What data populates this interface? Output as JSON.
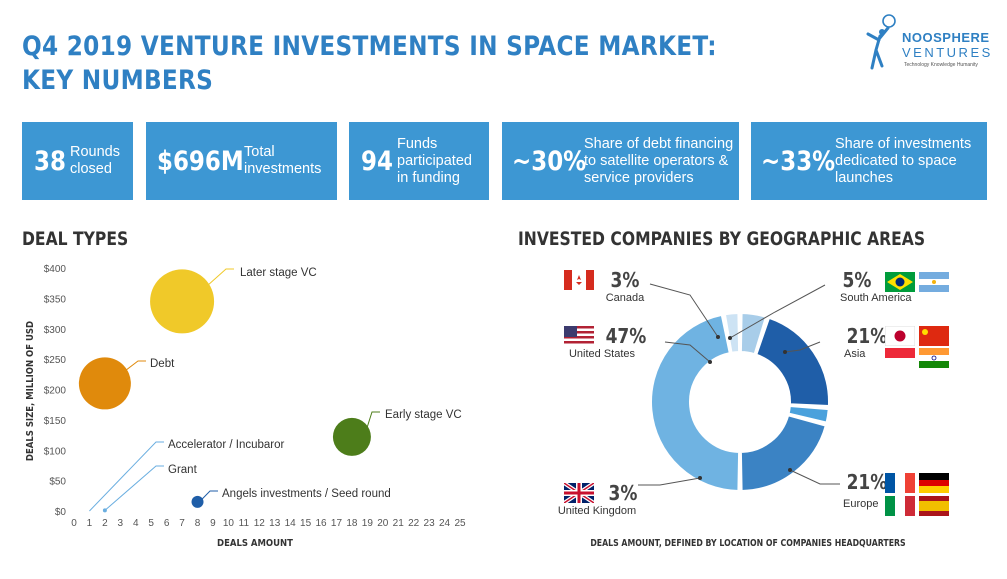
{
  "title": {
    "line1": "Q4 2019 VENTURE INVESTMENTS IN SPACE MARKET:",
    "line2": "KEY NUMBERS"
  },
  "logo": {
    "name": "NOOSPHERE",
    "sub": "VENTURES",
    "tagline": "Technology  Knowledge  Humanity"
  },
  "kpis": [
    {
      "value": "38",
      "label": "Rounds closed"
    },
    {
      "value": "$696M",
      "label": "Total investments"
    },
    {
      "value": "94",
      "label": "Funds participated in funding"
    },
    {
      "value": "~30%",
      "label": "Share of debt financing to satellite operators & service providers"
    },
    {
      "value": "~33%",
      "label": "Share of investments dedicated to space launches"
    }
  ],
  "sections": {
    "deal_types": "DEAL TYPES",
    "geo": "INVESTED COMPANIES BY GEOGRAPHIC AREAS"
  },
  "colors": {
    "kpi_bg": "#3d97d3",
    "title": "#2f80c3",
    "later_stage": "#f0c929",
    "debt": "#e08a0c",
    "early_stage": "#4d7d1a",
    "angels": "#1f5ea8"
  },
  "chart_data": [
    {
      "type": "scatter",
      "title": "DEAL TYPES",
      "xlabel": "DEALS AMOUNT",
      "ylabel": "DEALS SIZE, MILLION OF USD",
      "xlim": [
        0,
        25
      ],
      "ylim": [
        0,
        400
      ],
      "x_ticks": [
        "0",
        "1",
        "2",
        "3",
        "4",
        "5",
        "6",
        "7",
        "8",
        "9",
        "10",
        "11",
        "12",
        "13",
        "14",
        "15",
        "16",
        "17",
        "18",
        "19",
        "20",
        "21",
        "22",
        "23",
        "24",
        "25"
      ],
      "y_ticks": [
        "$0",
        "$50",
        "$100",
        "$150",
        "$200",
        "$250",
        "$300",
        "$350",
        "$400"
      ],
      "grid": false,
      "series": [
        {
          "name": "Later stage VC",
          "x": 7,
          "y": 345,
          "size": 32
        },
        {
          "name": "Debt",
          "x": 2,
          "y": 210,
          "size": 26
        },
        {
          "name": "Early stage VC",
          "x": 18,
          "y": 122,
          "size": 19
        },
        {
          "name": "Accelerator / Incubaror",
          "x": 1,
          "y": 0,
          "size": 0
        },
        {
          "name": "Grant",
          "x": 2,
          "y": 1,
          "size": 2
        },
        {
          "name": "Angels investments / Seed round",
          "x": 8,
          "y": 15,
          "size": 6
        }
      ]
    },
    {
      "type": "pie",
      "title": "INVESTED COMPANIES BY GEOGRAPHIC AREAS",
      "xlabel": "DEALS AMOUNT, DEFINED BY LOCATION OF COMPANIES HEADQUARTERS",
      "slices": [
        {
          "name": "South America",
          "value": 5,
          "label": "5%"
        },
        {
          "name": "Asia",
          "value": 21,
          "label": "21%"
        },
        {
          "name": "United Kingdom",
          "value": 3,
          "label": "3%"
        },
        {
          "name": "Europe",
          "value": 21,
          "label": "21%"
        },
        {
          "name": "United States",
          "value": 47,
          "label": "47%"
        },
        {
          "name": "Canada",
          "value": 3,
          "label": "3%"
        }
      ]
    }
  ]
}
